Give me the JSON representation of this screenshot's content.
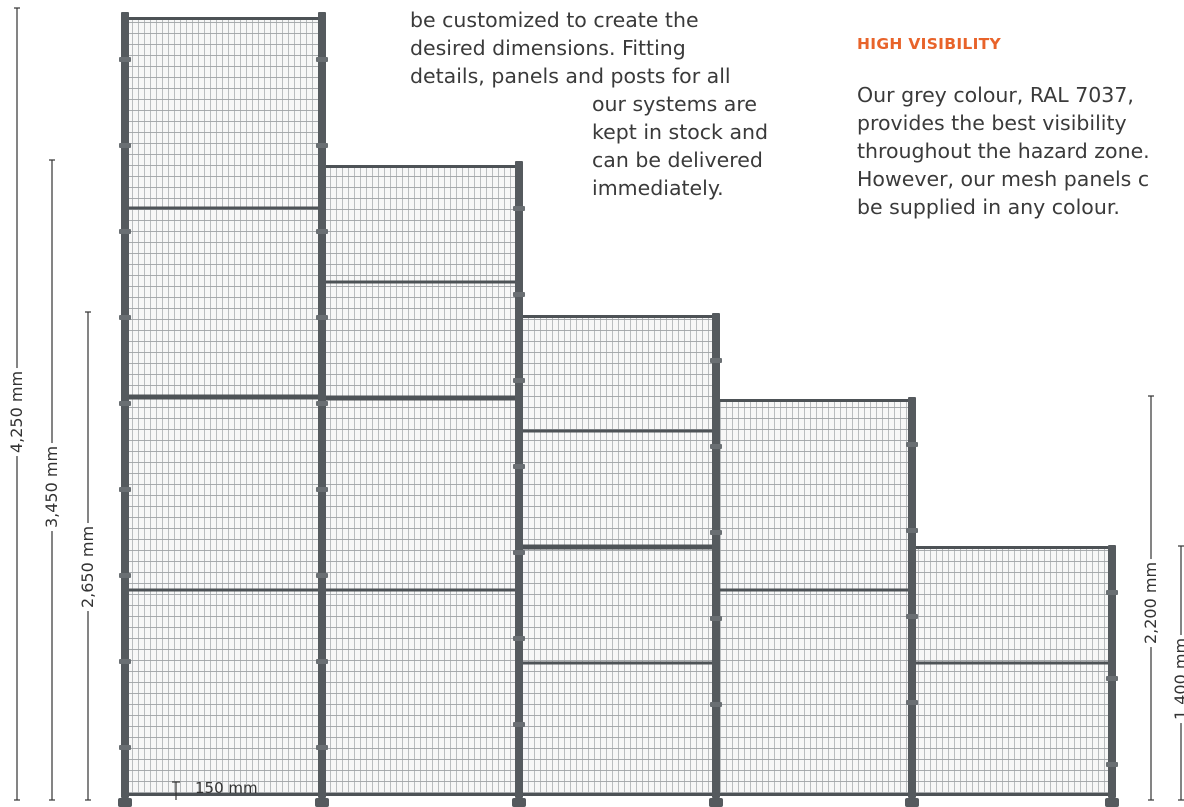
{
  "text_left": {
    "line1": "be customized to create the",
    "line2": "desired dimensions. Fitting",
    "line3": "details, panels and posts for all",
    "line4": "our systems are",
    "line5": "kept in stock and",
    "line6": "can be delivered",
    "line7": "immediately."
  },
  "text_right": {
    "heading": "HIGH VISIBILITY",
    "line1": "Our grey colour, RAL 7037,",
    "line2": "provides the best visibility",
    "line3": "throughout the hazard zone.",
    "line4": "However, our mesh panels c",
    "line5": "be supplied in any colour."
  },
  "dimensions": {
    "h4250": "4,250 mm",
    "h3450": "3,450 mm",
    "h2650": "2,650 mm",
    "h2200": "2,200 mm",
    "h1400": "1,400 mm",
    "gap150": "150 mm"
  },
  "colors": {
    "post": "#555a5e",
    "frame": "#4d5256",
    "mesh": "#b4b7b9",
    "accent": "#e8632a",
    "text": "#3a3a3a"
  }
}
